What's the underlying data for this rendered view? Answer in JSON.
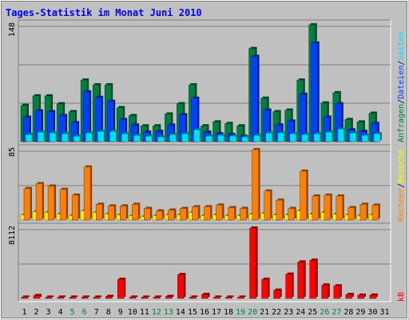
{
  "chart_data": {
    "type": "bar",
    "title": "Tages-Statistik im Monat Juni 2010",
    "categories": [
      "1",
      "2",
      "3",
      "4",
      "5",
      "6",
      "7",
      "8",
      "9",
      "10",
      "11",
      "12",
      "13",
      "14",
      "15",
      "16",
      "17",
      "18",
      "19",
      "20",
      "21",
      "22",
      "23",
      "24",
      "25",
      "26",
      "27",
      "28",
      "29",
      "30",
      "31"
    ],
    "weekend_days": [
      "5",
      "6",
      "12",
      "13",
      "19",
      "20",
      "26",
      "27"
    ],
    "colors": {
      "anfragen": "#008040",
      "dateien": "#0040ff",
      "seiten": "#00e0ff",
      "besuche": "#ffff00",
      "rechner": "#ff8000",
      "kb": "#ff0000",
      "title": "#0000ff",
      "weekend": "#008040",
      "plot_bg": "#c0c0c0",
      "grid": "#808080"
    },
    "panels": [
      {
        "ymax": "148",
        "ylim": [
          0,
          148
        ],
        "right_labels": [
          {
            "text": "Anfragen",
            "color": "#008040"
          },
          {
            "text": "/",
            "color": "#000000"
          },
          {
            "text": "Dateien",
            "color": "#0040ff"
          },
          {
            "text": "/",
            "color": "#000000"
          },
          {
            "text": "Seiten",
            "color": "#00e0ff"
          }
        ],
        "series": [
          {
            "name": "Anfragen",
            "key": "anfragen",
            "values": [
              46,
              58,
              58,
              48,
              38,
              78,
              72,
              72,
              43,
              33,
              20,
              20,
              35,
              48,
              72,
              20,
              25,
              23,
              20,
              118,
              55,
              38,
              40,
              78,
              148,
              49,
              62,
              28,
              25,
              36,
              0
            ]
          },
          {
            "name": "Dateien",
            "key": "dateien",
            "values": [
              31,
              39,
              38,
              33,
              24,
              63,
              56,
              51,
              28,
              21,
              12,
              13,
              21,
              34,
              55,
              12,
              10,
              9,
              7,
              108,
              40,
              21,
              26,
              60,
              125,
              31,
              48,
              15,
              13,
              23,
              0
            ]
          },
          {
            "name": "Seiten",
            "key": "seiten",
            "values": [
              9,
              12,
              11,
              10,
              7,
              11,
              13,
              13,
              10,
              8,
              7,
              6,
              9,
              10,
              15,
              7,
              8,
              7,
              6,
              8,
              11,
              11,
              10,
              9,
              10,
              12,
              16,
              11,
              8,
              10,
              0
            ]
          }
        ]
      },
      {
        "ymax": "85",
        "ylim": [
          0,
          85
        ],
        "right_labels": [
          {
            "text": "Rechner",
            "color": "#ff8000"
          },
          {
            "text": "/",
            "color": "#000000"
          },
          {
            "text": "Besuche",
            "color": "#ffff00"
          }
        ],
        "series": [
          {
            "name": "Besuche",
            "key": "besuche",
            "values": [
              6,
              10,
              9,
              7,
              5,
              11,
              9,
              7,
              6,
              5,
              4,
              5,
              6,
              6,
              9,
              5,
              6,
              5,
              5,
              7,
              8,
              6,
              6,
              11,
              7,
              9,
              7,
              6,
              5,
              6,
              0
            ]
          },
          {
            "name": "Rechner",
            "key": "rechner",
            "values": [
              38,
              44,
              41,
              37,
              30,
              64,
              19,
              17,
              17,
              19,
              14,
              11,
              12,
              14,
              16,
              16,
              18,
              15,
              14,
              85,
              35,
              24,
              14,
              59,
              29,
              30,
              29,
              15,
              19,
              18,
              0
            ]
          }
        ]
      },
      {
        "ymax": "8112",
        "ylim": [
          0,
          8112
        ],
        "right_labels": [
          {
            "text": "kB",
            "color": "#ff0000"
          }
        ],
        "series": [
          {
            "name": "kB",
            "key": "kb",
            "values": [
              150,
              330,
              150,
              150,
              150,
              150,
              150,
              230,
              2200,
              150,
              150,
              150,
              230,
              2750,
              150,
              460,
              150,
              150,
              150,
              8112,
              2200,
              950,
              2800,
              4200,
              4400,
              1550,
              1450,
              450,
              380,
              380,
              0
            ]
          }
        ]
      }
    ]
  }
}
